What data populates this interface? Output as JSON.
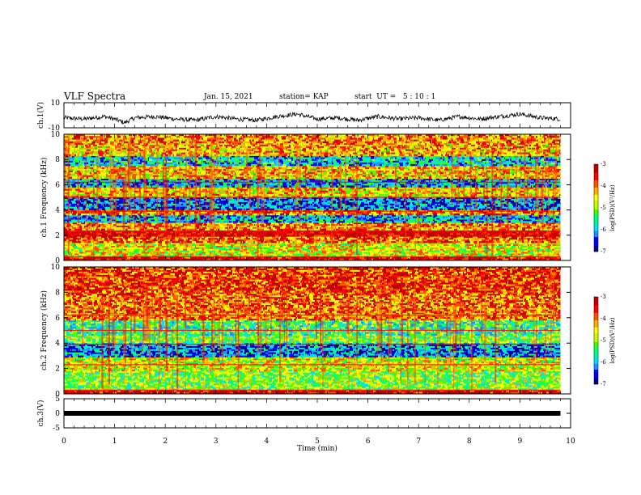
{
  "header": {
    "title": "VLF Spectra",
    "date": "Jan. 15, 2021",
    "station": "station= KAP",
    "start_ut": "start  UT =   5 : 10 : 1"
  },
  "colormap": [
    "#00008b",
    "#0000ff",
    "#1e90ff",
    "#00e0ff",
    "#00ff80",
    "#40ff00",
    "#c8ff00",
    "#ffff00",
    "#ffb000",
    "#ff5000",
    "#ff0000",
    "#c00000"
  ],
  "chart_data": [
    {
      "type": "line",
      "name": "ch1-waveform",
      "ylabel": "ch.1(V)",
      "ylim": [
        -10,
        10
      ],
      "yticks": [
        10,
        -10
      ],
      "xlim": [
        0,
        10
      ],
      "x": [
        0,
        0.4,
        0.8,
        1.0,
        1.2,
        1.4,
        1.8,
        2.2,
        2.6,
        3.0,
        3.4,
        3.8,
        4.2,
        4.6,
        5.0,
        5.4,
        5.8,
        6.2,
        6.6,
        7.0,
        7.4,
        7.8,
        8.2,
        8.6,
        9.0,
        9.4,
        9.8
      ],
      "y": [
        -2,
        -3,
        -1,
        -3,
        -6,
        -2,
        -1,
        -3,
        -4,
        -1,
        -3,
        -4,
        -1,
        1,
        -3,
        -2,
        -4,
        -1,
        -3,
        -2,
        -4,
        -1,
        -3,
        -1,
        1,
        -2,
        -3
      ]
    },
    {
      "type": "heatmap",
      "name": "ch1-spectrogram",
      "ylabel": "ch.1  Frequency (kHz)",
      "ylim": [
        0,
        10
      ],
      "yticks": [
        0,
        2,
        4,
        6,
        8,
        10
      ],
      "xlim": [
        0,
        9.8
      ],
      "colorbar": {
        "label": "log(PSD)(V²/Hz)",
        "ticks": [
          -3,
          -4,
          -5,
          -6,
          -7
        ],
        "range": [
          -7,
          -3
        ]
      },
      "freq_bands_khz": [
        [
          0.0,
          0.3,
          -3.2
        ],
        [
          0.3,
          1.4,
          -4.6
        ],
        [
          1.4,
          1.9,
          -3.8
        ],
        [
          1.9,
          2.4,
          -3.1
        ],
        [
          2.4,
          3.0,
          -4.0
        ],
        [
          3.0,
          3.6,
          -6.0
        ],
        [
          3.6,
          4.0,
          -3.9
        ],
        [
          4.0,
          5.0,
          -6.2
        ],
        [
          5.0,
          5.8,
          -4.4
        ],
        [
          5.8,
          6.5,
          -6.0
        ],
        [
          6.5,
          7.5,
          -4.3
        ],
        [
          7.5,
          8.3,
          -5.8
        ],
        [
          8.3,
          9.3,
          -4.2
        ],
        [
          9.3,
          10.0,
          -4.0
        ]
      ]
    },
    {
      "type": "heatmap",
      "name": "ch2-spectrogram",
      "ylabel": "ch.2  Frequency (kHz)",
      "ylim": [
        0,
        10
      ],
      "yticks": [
        0,
        2,
        4,
        6,
        8,
        10
      ],
      "xlim": [
        0,
        9.8
      ],
      "colorbar": {
        "label": "log(PSD)(V²/Hz)",
        "ticks": [
          -3,
          -4,
          -5,
          -6,
          -7
        ],
        "range": [
          -7,
          -3
        ]
      },
      "freq_bands_khz": [
        [
          0.0,
          0.3,
          -3.2
        ],
        [
          0.3,
          1.8,
          -5.0
        ],
        [
          1.8,
          2.9,
          -4.6
        ],
        [
          2.9,
          4.0,
          -6.2
        ],
        [
          4.0,
          4.6,
          -5.0
        ],
        [
          4.6,
          5.8,
          -5.4
        ],
        [
          5.8,
          6.4,
          -4.0
        ],
        [
          6.4,
          8.0,
          -3.9
        ],
        [
          8.0,
          10.0,
          -3.6
        ]
      ]
    },
    {
      "type": "line",
      "name": "ch3-waveform",
      "ylabel": "ch.3(V)",
      "ylim": [
        -5,
        5
      ],
      "yticks": [
        5,
        0,
        -5
      ],
      "xlim": [
        0,
        10
      ],
      "x": [
        0,
        9.8
      ],
      "y": [
        0,
        0
      ],
      "xlabel": "Time (min)",
      "xticks": [
        0,
        1,
        2,
        3,
        4,
        5,
        6,
        7,
        8,
        9,
        10
      ]
    }
  ]
}
